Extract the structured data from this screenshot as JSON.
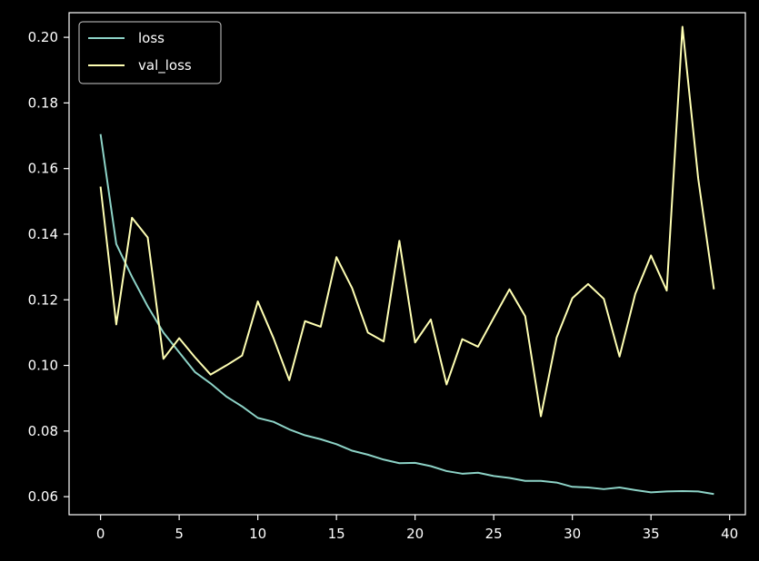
{
  "chart_data": {
    "type": "line",
    "title": "",
    "xlabel": "",
    "ylabel": "",
    "xlim": [
      -2,
      41
    ],
    "ylim": [
      0.0545,
      0.2075
    ],
    "xticks": [
      0,
      5,
      10,
      15,
      20,
      25,
      30,
      35,
      40
    ],
    "xtick_labels": [
      "0",
      "5",
      "10",
      "15",
      "20",
      "25",
      "30",
      "35",
      "40"
    ],
    "yticks": [
      0.06,
      0.08,
      0.1,
      0.12,
      0.14,
      0.16,
      0.18,
      0.2
    ],
    "ytick_labels": [
      "0.06",
      "0.08",
      "0.10",
      "0.12",
      "0.14",
      "0.16",
      "0.18",
      "0.20"
    ],
    "grid": false,
    "legend_position": "top-left",
    "background": "#000000",
    "axis_color": "#ffffff",
    "x": [
      0,
      1,
      2,
      3,
      4,
      5,
      6,
      7,
      8,
      9,
      10,
      11,
      12,
      13,
      14,
      15,
      16,
      17,
      18,
      19,
      20,
      21,
      22,
      23,
      24,
      25,
      26,
      27,
      28,
      29,
      30,
      31,
      32,
      33,
      34,
      35,
      36,
      37,
      38,
      39
    ],
    "series": [
      {
        "name": "loss",
        "color": "#8dd3c7",
        "values": [
          0.1705,
          0.137,
          0.127,
          0.118,
          0.11,
          0.104,
          0.098,
          0.0945,
          0.0905,
          0.0875,
          0.084,
          0.0828,
          0.0805,
          0.0787,
          0.0775,
          0.076,
          0.074,
          0.0728,
          0.0713,
          0.0702,
          0.0703,
          0.0693,
          0.0678,
          0.067,
          0.0673,
          0.0663,
          0.0657,
          0.0648,
          0.0648,
          0.0643,
          0.063,
          0.0628,
          0.0623,
          0.0628,
          0.062,
          0.0613,
          0.0616,
          0.0617,
          0.0616,
          0.0608
        ]
      },
      {
        "name": "val_loss",
        "color": "#ffffb3",
        "values": [
          0.1545,
          0.1125,
          0.145,
          0.139,
          0.102,
          0.1083,
          0.1025,
          0.0972,
          0.1,
          0.103,
          0.1195,
          0.1083,
          0.0955,
          0.1135,
          0.1118,
          0.133,
          0.1235,
          0.11,
          0.1073,
          0.138,
          0.107,
          0.114,
          0.0942,
          0.108,
          0.1057,
          0.1145,
          0.1232,
          0.115,
          0.0845,
          0.1085,
          0.1205,
          0.1248,
          0.1203,
          0.1027,
          0.1218,
          0.1335,
          0.1228,
          0.2032,
          0.157,
          0.1232
        ]
      }
    ]
  }
}
